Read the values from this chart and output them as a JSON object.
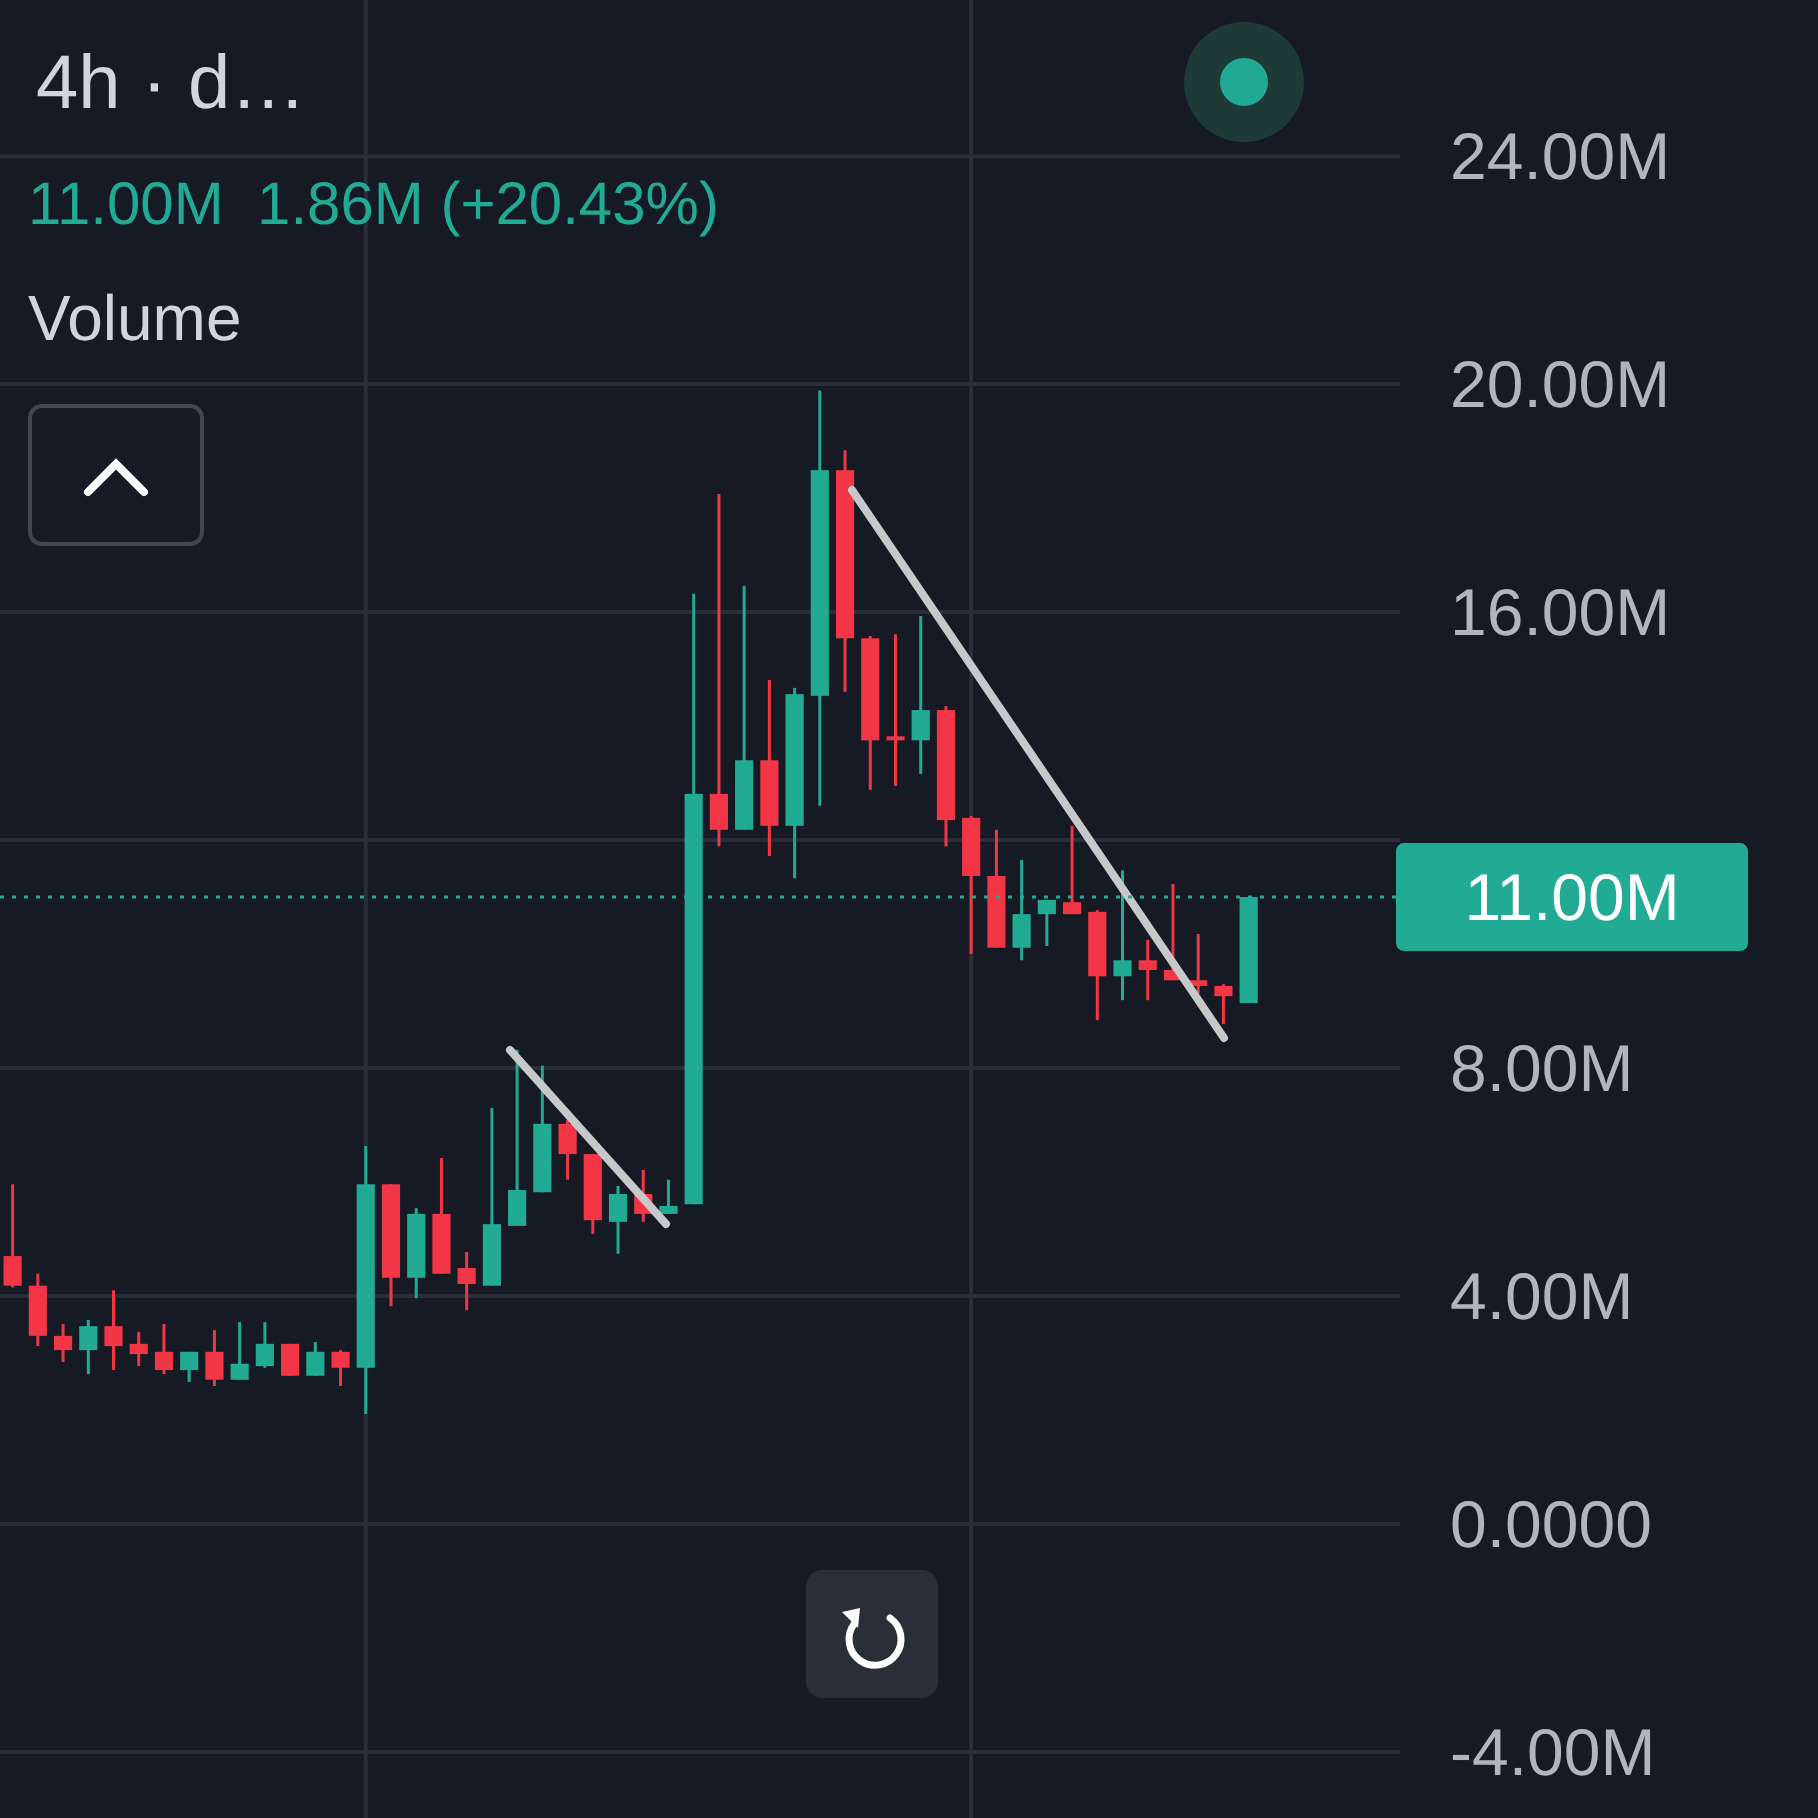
{
  "chart_data": {
    "type": "candlestick",
    "title": "4h · d…",
    "subtitle": "11.00M  1.86M (+20.43%)",
    "annotations": [
      "Volume"
    ],
    "categories": [
      null,
      null,
      null,
      null,
      null,
      null,
      null,
      null,
      null,
      null,
      null,
      null,
      null,
      null,
      null,
      null,
      null,
      null,
      null,
      null,
      null,
      null,
      null,
      null,
      null,
      null,
      null,
      null,
      null,
      null,
      null,
      null,
      null,
      null,
      null,
      null,
      null,
      null,
      null,
      null,
      null,
      null,
      null,
      null,
      null,
      null,
      null,
      null,
      null,
      null
    ],
    "ohlc": [
      [
        4.7,
        5.96,
        4.15,
        4.18
      ],
      [
        4.18,
        4.39,
        3.12,
        3.3
      ],
      [
        3.3,
        3.51,
        2.84,
        3.05
      ],
      [
        3.05,
        3.58,
        2.63,
        3.47
      ],
      [
        3.47,
        4.1,
        2.7,
        3.12
      ],
      [
        3.16,
        3.37,
        2.77,
        2.98
      ],
      [
        3.02,
        3.51,
        2.63,
        2.7
      ],
      [
        2.7,
        3.02,
        2.49,
        3.02
      ],
      [
        3.02,
        3.4,
        2.42,
        2.53
      ],
      [
        2.53,
        3.54,
        2.53,
        2.81
      ],
      [
        2.77,
        3.54,
        2.74,
        3.16
      ],
      [
        3.16,
        3.16,
        2.6,
        2.6
      ],
      [
        2.6,
        3.19,
        2.6,
        3.02
      ],
      [
        3.02,
        3.05,
        2.42,
        2.74
      ],
      [
        2.74,
        6.63,
        1.93,
        5.96
      ],
      [
        5.96,
        5.96,
        3.82,
        4.32
      ],
      [
        4.32,
        5.54,
        3.96,
        5.44
      ],
      [
        5.44,
        6.42,
        4.39,
        4.39
      ],
      [
        4.49,
        4.77,
        3.75,
        4.21
      ],
      [
        4.18,
        7.3,
        4.18,
        5.26
      ],
      [
        5.23,
        8.32,
        5.23,
        5.86
      ],
      [
        5.82,
        8.04,
        5.82,
        7.02
      ],
      [
        7.02,
        7.09,
        6.04,
        6.49
      ],
      [
        6.49,
        6.49,
        5.09,
        5.33
      ],
      [
        5.3,
        5.93,
        4.74,
        5.79
      ],
      [
        5.79,
        6.21,
        5.3,
        5.44
      ],
      [
        5.44,
        6.04,
        5.44,
        5.58
      ],
      [
        5.61,
        16.32,
        5.61,
        12.81
      ],
      [
        12.81,
        18.07,
        11.89,
        12.18
      ],
      [
        12.18,
        16.46,
        12.18,
        13.4
      ],
      [
        13.4,
        14.81,
        11.72,
        12.25
      ],
      [
        12.25,
        14.67,
        11.33,
        14.56
      ],
      [
        14.53,
        19.89,
        12.6,
        18.49
      ],
      [
        18.49,
        18.84,
        14.6,
        15.54
      ],
      [
        15.54,
        15.58,
        12.88,
        13.75
      ],
      [
        13.82,
        15.61,
        12.95,
        13.75
      ],
      [
        13.75,
        15.93,
        13.16,
        14.28
      ],
      [
        14.28,
        14.35,
        11.89,
        12.35
      ],
      [
        12.39,
        12.42,
        10.0,
        11.37
      ],
      [
        11.37,
        12.18,
        10.11,
        10.11
      ],
      [
        10.11,
        11.65,
        9.89,
        10.7
      ],
      [
        10.7,
        10.95,
        10.14,
        10.95
      ],
      [
        10.91,
        12.25,
        10.7,
        10.7
      ],
      [
        10.74,
        10.77,
        8.84,
        9.61
      ],
      [
        9.61,
        11.47,
        9.19,
        9.89
      ],
      [
        9.89,
        10.25,
        9.19,
        9.72
      ],
      [
        9.72,
        11.23,
        9.54,
        9.54
      ],
      [
        9.54,
        10.35,
        9.3,
        9.44
      ],
      [
        9.44,
        9.47,
        8.77,
        9.26
      ],
      [
        9.14,
        11.0,
        9.14,
        11.0
      ]
    ],
    "colors": [
      "#f23645",
      "#f23645",
      "#f23645",
      "#22ab94",
      "#f23645",
      "#f23645",
      "#f23645",
      "#22ab94",
      "#f23645",
      "#22ab94",
      "#22ab94",
      "#f23645",
      "#22ab94",
      "#f23645",
      "#22ab94",
      "#f23645",
      "#22ab94",
      "#f23645",
      "#f23645",
      "#22ab94",
      "#22ab94",
      "#22ab94",
      "#f23645",
      "#f23645",
      "#22ab94",
      "#f23645",
      "#22ab94",
      "#22ab94",
      "#f23645",
      "#22ab94",
      "#f23645",
      "#22ab94",
      "#22ab94",
      "#f23645",
      "#f23645",
      "#f23645",
      "#22ab94",
      "#f23645",
      "#f23645",
      "#f23645",
      "#22ab94",
      "#22ab94",
      "#f23645",
      "#f23645",
      "#22ab94",
      "#f23645",
      "#f23645",
      "#f23645",
      "#f23645",
      "#22ab94"
    ],
    "ref_lines": [
      {
        "axis": "y",
        "value": 11,
        "label": "11.00M",
        "color": "#22ab94",
        "line_style": "dotted"
      }
    ],
    "ylim": [
      -5.16,
      26.74
    ],
    "yticks": [
      {
        "value": 24,
        "label": "24.00M"
      },
      {
        "value": 20,
        "label": "20.00M"
      },
      {
        "value": 16,
        "label": "16.00M"
      },
      {
        "value": 12,
        "label": null
      },
      {
        "value": 8,
        "label": "8.00M"
      },
      {
        "value": 4,
        "label": "4.00M"
      },
      {
        "value": 0,
        "label": "0.0000"
      },
      {
        "value": -4,
        "label": "-4.00M"
      }
    ],
    "grid": true,
    "tick_labels": "y"
  }
}
